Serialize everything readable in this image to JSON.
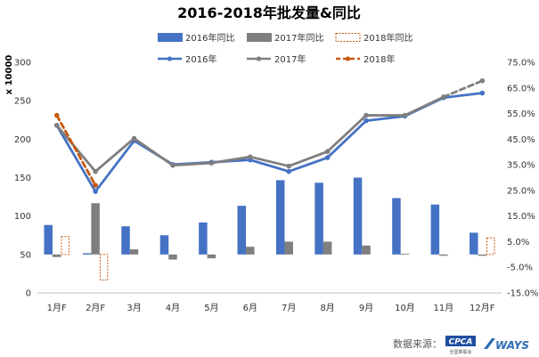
{
  "chart_data": {
    "type": "bar+line",
    "title": "2016-2018年批发量&同比",
    "ylabel": "x 10000",
    "categories": [
      "1月F",
      "2月F",
      "3月",
      "4月",
      "5月",
      "6月",
      "7月",
      "8月",
      "9月",
      "10月",
      "11月",
      "12月F"
    ],
    "ylim": [
      0,
      300
    ],
    "y_ticks": [
      "0",
      "50",
      "100",
      "150",
      "200",
      "250",
      "300"
    ],
    "y2lim": [
      -15,
      75
    ],
    "y2_ticks": [
      "-15.0%",
      "-5.0%",
      "5.0%",
      "15.0%",
      "25.0%",
      "35.0%",
      "45.0%",
      "55.0%",
      "65.0%",
      "75.0%"
    ],
    "bar_series": [
      {
        "name": "2016年同比",
        "color": "#4472C4",
        "values": [
          11.5,
          0.5,
          11,
          7.5,
          12.5,
          19,
          29,
          28,
          30,
          22,
          19.5,
          8.5
        ]
      },
      {
        "name": "2017年同比",
        "color": "#7F7F7F",
        "values": [
          -1,
          20,
          2,
          -2,
          -1.5,
          3,
          5,
          5,
          3.5,
          0.3,
          -0.5,
          -0.5
        ]
      },
      {
        "name": "2018年同比",
        "color": "#C55A11",
        "style": "dashed-outline",
        "values": [
          7,
          -10,
          null,
          null,
          null,
          null,
          null,
          null,
          null,
          null,
          null,
          6.5
        ]
      }
    ],
    "line_series": [
      {
        "name": "2016年",
        "color": "#4472C4",
        "values": [
          218,
          132,
          198,
          167,
          170,
          173,
          158,
          176,
          224,
          230,
          254,
          260
        ]
      },
      {
        "name": "2017年",
        "color": "#7F7F7F",
        "values": [
          218,
          158,
          201,
          166,
          169,
          177,
          165,
          184,
          231,
          231,
          255,
          276
        ],
        "dashed_from_index": 10
      },
      {
        "name": "2018年",
        "color": "#C55A11",
        "values": [
          231,
          140,
          null,
          null,
          null,
          null,
          null,
          null,
          null,
          null,
          null,
          null
        ]
      }
    ],
    "legend_position": "top",
    "grid": false
  },
  "source": {
    "label": "数据来源：",
    "logo1": "CPCA",
    "logo1_sub": "全国乘联会",
    "logo2": "WAYS"
  }
}
